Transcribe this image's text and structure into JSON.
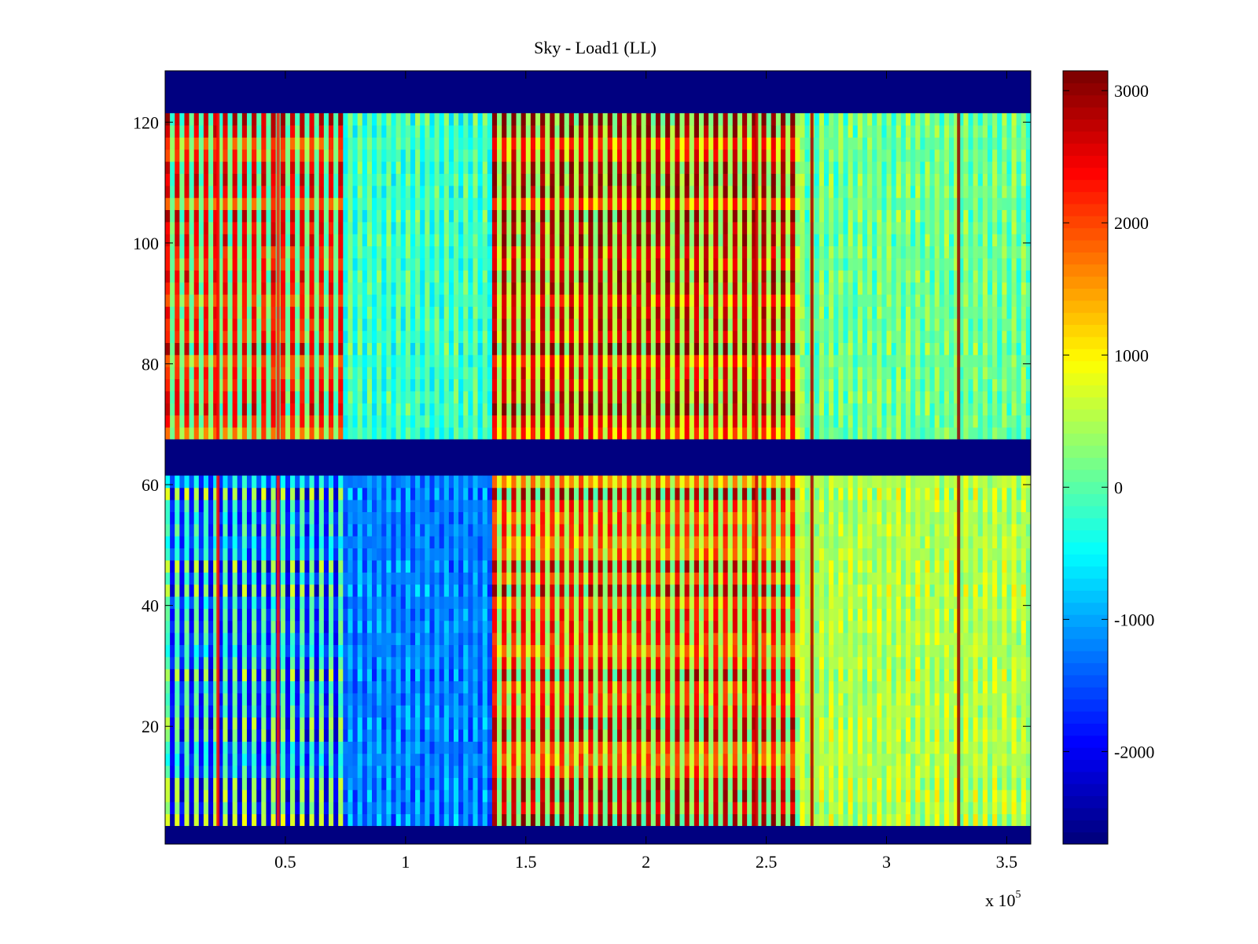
{
  "chart_data": {
    "type": "heatmap",
    "title": "Sky - Load1 (LL)",
    "xlabel": "",
    "ylabel": "",
    "x_exponent_label": {
      "base": "x 10",
      "exponent": "5"
    },
    "xlim": [
      0,
      360000
    ],
    "ylim": [
      0.5,
      128.5
    ],
    "x_ticks": [
      {
        "value": 50000,
        "label": "0.5"
      },
      {
        "value": 100000,
        "label": "1"
      },
      {
        "value": 150000,
        "label": "1.5"
      },
      {
        "value": 200000,
        "label": "2"
      },
      {
        "value": 250000,
        "label": "2.5"
      },
      {
        "value": 300000,
        "label": "3"
      },
      {
        "value": 350000,
        "label": "3.5"
      }
    ],
    "y_ticks": [
      {
        "value": 20,
        "label": "20"
      },
      {
        "value": 40,
        "label": "40"
      },
      {
        "value": 60,
        "label": "60"
      },
      {
        "value": 80,
        "label": "80"
      },
      {
        "value": 100,
        "label": "100"
      },
      {
        "value": 120,
        "label": "120"
      }
    ],
    "colormap": "jet",
    "clim": [
      -2700,
      3150
    ],
    "colorbar": {
      "position": "right",
      "ticks": [
        {
          "value": 3000,
          "label": "3000"
        },
        {
          "value": 2000,
          "label": "2000"
        },
        {
          "value": 1000,
          "label": "1000"
        },
        {
          "value": 0,
          "label": "0"
        },
        {
          "value": -1000,
          "label": "-1000"
        },
        {
          "value": -2000,
          "label": "-2000"
        }
      ]
    },
    "masked_value": -2700,
    "masked_row_bands": [
      [
        0.5,
        3.5
      ],
      [
        61.5,
        67.5
      ],
      [
        121.5,
        128.5
      ]
    ],
    "data_row_groups": [
      {
        "rows": [
          4,
          61
        ],
        "name": "lower"
      },
      {
        "rows": [
          68,
          121
        ],
        "name": "upper"
      }
    ],
    "column_segments": [
      {
        "x": [
          0,
          74000
        ],
        "lower_mean": -1200,
        "upper_mean": 900,
        "stripe_amplitude": 1300
      },
      {
        "x": [
          74000,
          136000
        ],
        "lower_mean": -1300,
        "upper_mean": -250,
        "stripe_amplitude": 350
      },
      {
        "x": [
          136000,
          264000
        ],
        "lower_mean": 1100,
        "upper_mean": 1300,
        "stripe_amplitude": 1300
      },
      {
        "x": [
          264000,
          360000
        ],
        "lower_mean": 450,
        "upper_mean": 50,
        "stripe_amplitude": 300
      }
    ],
    "spike_columns": [
      {
        "x": 22000,
        "value": 2400
      },
      {
        "x": 47000,
        "value": 2300
      },
      {
        "x": 246000,
        "value": 2700
      },
      {
        "x": 269000,
        "value": 2900
      },
      {
        "x": 330000,
        "value": 3000
      }
    ]
  }
}
